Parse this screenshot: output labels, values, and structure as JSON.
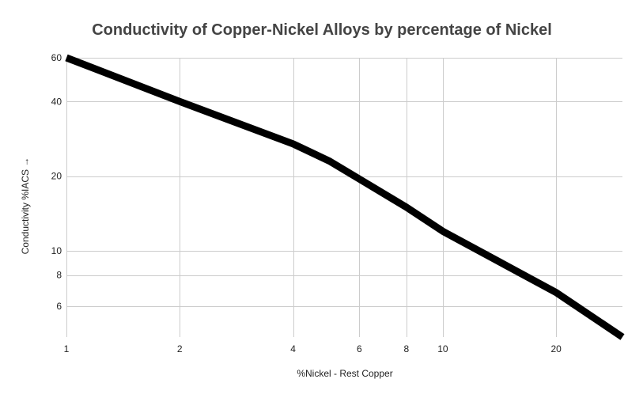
{
  "chart_data": {
    "type": "line",
    "title": "Conductivity of Copper-Nickel Alloys by percentage of Nickel",
    "xlabel": "%Nickel - Rest Copper",
    "ylabel": "Conductivity %IACS →",
    "x_scale": "log",
    "y_scale": "log",
    "xlim": [
      1,
      30
    ],
    "ylim": [
      4.5,
      60
    ],
    "x_ticks": [
      1,
      2,
      4,
      6,
      8,
      10,
      20
    ],
    "y_ticks": [
      6,
      8,
      10,
      20,
      40,
      60
    ],
    "grid": true,
    "legend": "none",
    "series": [
      {
        "color": "#000000",
        "x": [
          1,
          2,
          4,
          5,
          6,
          8,
          10,
          20,
          30
        ],
        "y": [
          60,
          40,
          27,
          23,
          19.5,
          15,
          12,
          6.8,
          4.5
        ]
      }
    ]
  }
}
